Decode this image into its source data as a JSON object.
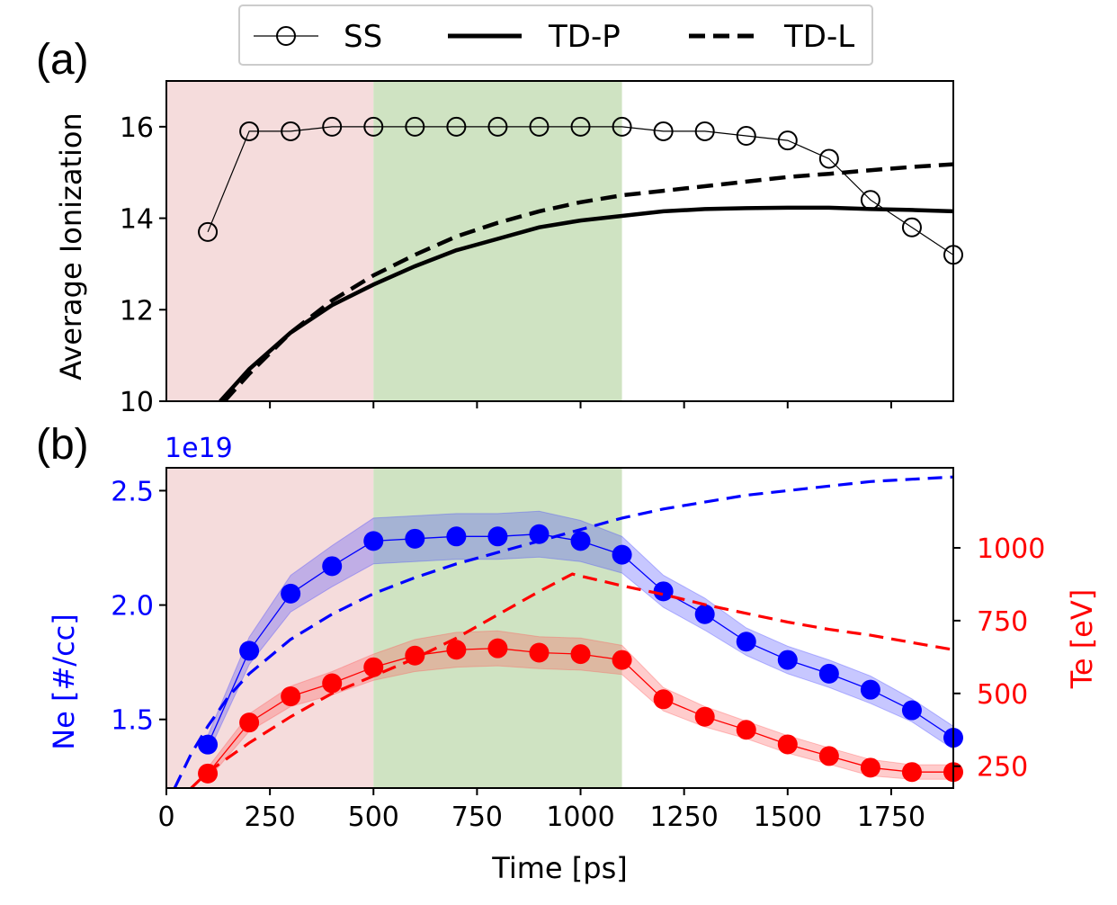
{
  "figure": {
    "panel_a_label": "(a)",
    "panel_b_label": "(b)",
    "legend": [
      {
        "label": "SS",
        "style": "thin-line-open-circle"
      },
      {
        "label": "TD-P",
        "style": "solid-thick"
      },
      {
        "label": "TD-L",
        "style": "dashed-thick"
      }
    ]
  },
  "chart_data": [
    {
      "type": "line",
      "panel": "(a)",
      "title": "",
      "xlabel": "",
      "ylabel": "Average Ionization",
      "xlim": [
        0,
        1900
      ],
      "ylim": [
        10,
        17
      ],
      "yticks": [
        10,
        12,
        14,
        16
      ],
      "xticks": [
        250,
        500,
        750,
        1000,
        1250,
        1500,
        1750
      ],
      "shaded_regions": [
        {
          "x": [
            0,
            500
          ],
          "color": "#f5dcdc"
        },
        {
          "x": [
            500,
            1100
          ],
          "color": "#cfe3c2"
        }
      ],
      "series": [
        {
          "name": "SS",
          "marker": "open-circle",
          "color": "#000000",
          "x": [
            100,
            200,
            300,
            400,
            500,
            600,
            700,
            800,
            900,
            1000,
            1100,
            1200,
            1300,
            1400,
            1500,
            1600,
            1700,
            1800,
            1900
          ],
          "y": [
            13.7,
            15.9,
            15.9,
            16.0,
            16.0,
            16.0,
            16.0,
            16.0,
            16.0,
            16.0,
            16.0,
            15.9,
            15.9,
            15.8,
            15.7,
            15.3,
            14.4,
            13.8,
            13.2
          ]
        },
        {
          "name": "TD-P",
          "line": "solid",
          "color": "#000000",
          "x": [
            130,
            200,
            300,
            400,
            500,
            600,
            700,
            800,
            900,
            1000,
            1100,
            1200,
            1300,
            1400,
            1500,
            1600,
            1700,
            1800,
            1900
          ],
          "y": [
            10.0,
            10.7,
            11.5,
            12.1,
            12.55,
            12.95,
            13.3,
            13.55,
            13.8,
            13.95,
            14.05,
            14.15,
            14.2,
            14.22,
            14.23,
            14.23,
            14.2,
            14.18,
            14.15
          ]
        },
        {
          "name": "TD-L",
          "line": "dashed",
          "color": "#000000",
          "x": [
            140,
            200,
            300,
            400,
            500,
            600,
            700,
            800,
            900,
            1000,
            1100,
            1200,
            1300,
            1400,
            1500,
            1600,
            1700,
            1800,
            1900
          ],
          "y": [
            10.0,
            10.6,
            11.5,
            12.2,
            12.75,
            13.2,
            13.6,
            13.9,
            14.15,
            14.35,
            14.5,
            14.6,
            14.7,
            14.8,
            14.9,
            14.97,
            15.05,
            15.12,
            15.18
          ]
        }
      ]
    },
    {
      "type": "line",
      "panel": "(b)",
      "title": "",
      "xlabel": "Time [ps]",
      "ylabel": "Ne [#/cc]",
      "ylabel_right": "Te [eV]",
      "y_offset_text": "1e19",
      "xlim": [
        0,
        1900
      ],
      "ylim": [
        1.2,
        2.6
      ],
      "ylim_right": [
        175,
        1275
      ],
      "xticks": [
        0,
        250,
        500,
        750,
        1000,
        1250,
        1500,
        1750
      ],
      "yticks": [
        1.5,
        2.0,
        2.5
      ],
      "yticks_right": [
        250,
        500,
        750,
        1000
      ],
      "shaded_regions": [
        {
          "x": [
            0,
            500
          ],
          "color": "#f5dcdc"
        },
        {
          "x": [
            500,
            1100
          ],
          "color": "#cfe3c2"
        }
      ],
      "series": [
        {
          "name": "",
          "axis": "left",
          "marker": "filled-circle",
          "color": "#0000ff",
          "band_color": "#4444ff",
          "x": [
            100,
            200,
            300,
            400,
            500,
            600,
            700,
            800,
            900,
            1000,
            1100,
            1200,
            1300,
            1400,
            1500,
            1600,
            1700,
            1800,
            1900
          ],
          "y": [
            1.39,
            1.8,
            2.05,
            2.17,
            2.28,
            2.29,
            2.3,
            2.3,
            2.31,
            2.28,
            2.22,
            2.06,
            1.96,
            1.84,
            1.76,
            1.7,
            1.63,
            1.54,
            1.42
          ],
          "band": [
            0.04,
            0.06,
            0.08,
            0.09,
            0.1,
            0.1,
            0.1,
            0.1,
            0.1,
            0.09,
            0.08,
            0.07,
            0.07,
            0.06,
            0.06,
            0.06,
            0.06,
            0.05,
            0.05
          ]
        },
        {
          "name": "",
          "axis": "left",
          "line": "dashed",
          "color": "#0000ff",
          "x": [
            20,
            60,
            100,
            150,
            200,
            300,
            400,
            500,
            600,
            700,
            800,
            900,
            1000,
            1100,
            1200,
            1300,
            1400,
            1500,
            1600,
            1700,
            1800,
            1900
          ],
          "y": [
            1.2,
            1.35,
            1.47,
            1.6,
            1.7,
            1.85,
            1.96,
            2.05,
            2.12,
            2.18,
            2.23,
            2.28,
            2.33,
            2.38,
            2.42,
            2.45,
            2.48,
            2.5,
            2.52,
            2.54,
            2.55,
            2.56
          ]
        },
        {
          "name": "",
          "axis": "right",
          "marker": "filled-circle",
          "color": "#ff0000",
          "band_color": "#ff5555",
          "x": [
            100,
            200,
            300,
            400,
            500,
            600,
            700,
            800,
            900,
            1000,
            1100,
            1200,
            1300,
            1400,
            1500,
            1600,
            1700,
            1800,
            1900
          ],
          "y": [
            225,
            400,
            490,
            535,
            590,
            630,
            650,
            655,
            640,
            635,
            615,
            480,
            420,
            375,
            325,
            285,
            245,
            230,
            230
          ],
          "band": [
            20,
            30,
            35,
            40,
            45,
            55,
            60,
            60,
            55,
            55,
            50,
            40,
            35,
            30,
            30,
            28,
            28,
            25,
            25
          ]
        },
        {
          "name": "",
          "axis": "right",
          "line": "dashed",
          "color": "#ff0000",
          "x": [
            60,
            100,
            200,
            300,
            400,
            500,
            600,
            700,
            800,
            900,
            980,
            1100,
            1200,
            1300,
            1400,
            1500,
            1600,
            1700,
            1800,
            1900
          ],
          "y": [
            175,
            230,
            330,
            420,
            500,
            560,
            620,
            690,
            770,
            850,
            910,
            870,
            840,
            805,
            775,
            745,
            720,
            700,
            675,
            650
          ]
        }
      ]
    }
  ]
}
